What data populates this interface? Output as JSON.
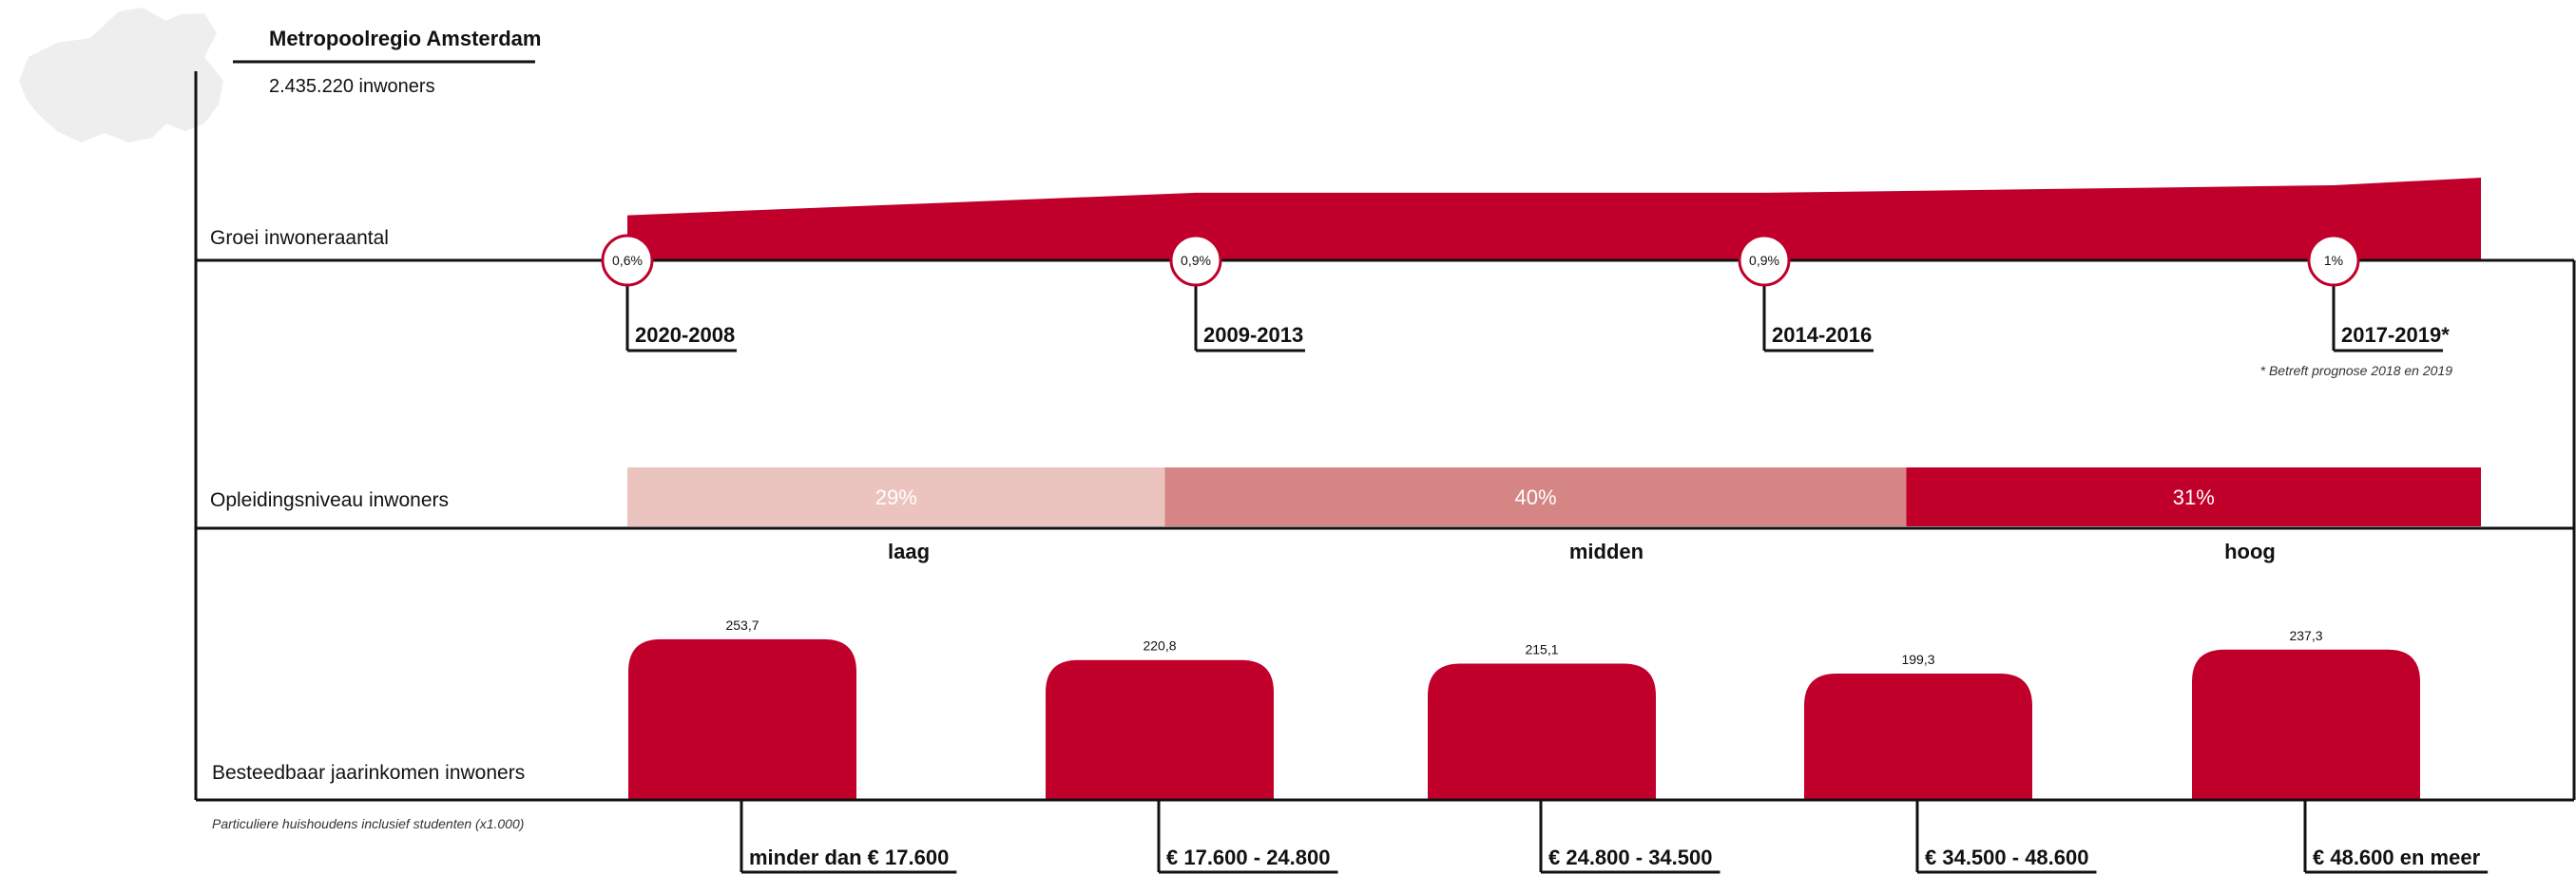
{
  "header": {
    "region": "Metropoolregio Amsterdam",
    "population": "2.435.220 inwoners"
  },
  "colors": {
    "accent": "#c0002a",
    "edu_low": "#ecc4bf",
    "edu_mid": "#d68585",
    "edu_high": "#c0002a",
    "map": "#eeeeee"
  },
  "chart_data": [
    {
      "type": "area",
      "title": "Groei inwoneraantal",
      "categories": [
        "2020-2008",
        "2009-2013",
        "2014-2016",
        "2017-2019*"
      ],
      "values": [
        0.6,
        0.9,
        0.9,
        1.0
      ],
      "value_labels": [
        "0,6%",
        "0,9%",
        "0,9%",
        "1%"
      ],
      "footnote": "* Betreft prognose 2018 en 2019"
    },
    {
      "type": "bar",
      "title": "Opleidingsniveau inwoners",
      "categories": [
        "laag",
        "midden",
        "hoog"
      ],
      "values": [
        29,
        40,
        31
      ],
      "value_labels": [
        "29%",
        "40%",
        "31%"
      ]
    },
    {
      "type": "bar",
      "title": "Besteedbaar jaarinkomen inwoners",
      "note": "Particuliere huishoudens inclusief studenten (x1.000)",
      "categories": [
        "minder dan € 17.600",
        "€ 17.600 - 24.800",
        "€ 24.800 - 34.500",
        "€ 34.500 - 48.600",
        "€ 48.600 en meer"
      ],
      "values": [
        253.7,
        220.8,
        215.1,
        199.3,
        237.3
      ],
      "value_labels": [
        "253,7",
        "220,8",
        "215,1",
        "199,3",
        "237,3"
      ]
    }
  ]
}
